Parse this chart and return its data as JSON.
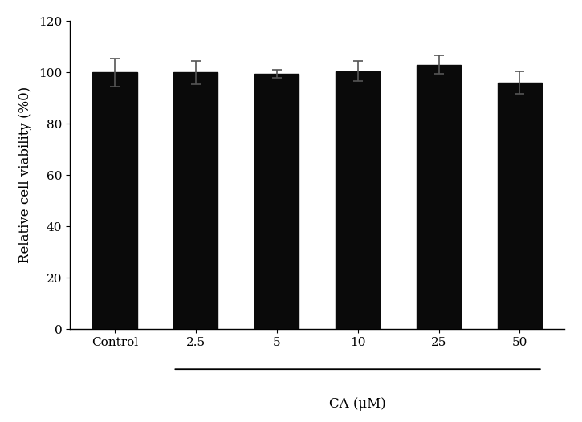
{
  "categories": [
    "Control",
    "2.5",
    "5",
    "10",
    "25",
    "50"
  ],
  "values": [
    100.0,
    100.0,
    99.5,
    100.5,
    103.0,
    96.0
  ],
  "errors": [
    5.5,
    4.5,
    1.5,
    4.0,
    3.5,
    4.5
  ],
  "bar_color": "#0a0a0a",
  "bar_width": 0.55,
  "ylabel": "Relative cell viability (%0)",
  "xlabel": "CA (μM)",
  "ylim": [
    0,
    120
  ],
  "yticks": [
    0,
    20,
    40,
    60,
    80,
    100,
    120
  ],
  "background_color": "#ffffff",
  "error_capsize": 4,
  "error_color": "#555555",
  "label_fontsize": 12,
  "tick_fontsize": 11,
  "font_family": "serif"
}
